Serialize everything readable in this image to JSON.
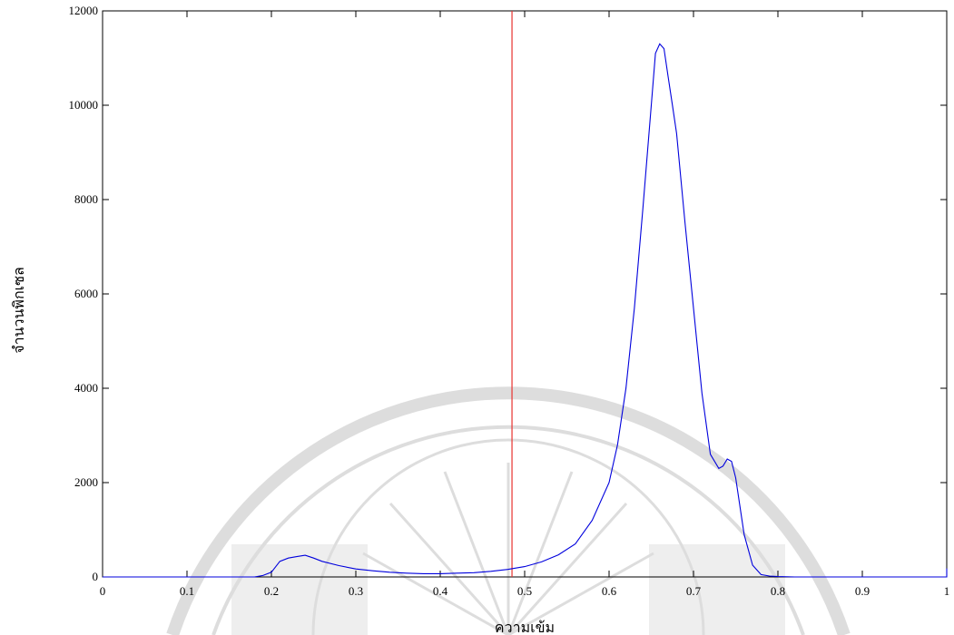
{
  "chart_data": {
    "type": "line",
    "title": "",
    "xlabel": "ความเข้ม",
    "ylabel": "จำนวนพิกเซล",
    "xlim": [
      0,
      1
    ],
    "ylim": [
      0,
      12000
    ],
    "xticks": [
      0,
      0.1,
      0.2,
      0.3,
      0.4,
      0.5,
      0.6,
      0.7,
      0.8,
      0.9,
      1
    ],
    "xtick_labels": [
      "0",
      "0.1",
      "0.2",
      "0.3",
      "0.4",
      "0.5",
      "0.6",
      "0.7",
      "0.8",
      "0.9",
      "1"
    ],
    "yticks": [
      0,
      2000,
      4000,
      6000,
      8000,
      10000,
      12000
    ],
    "ytick_labels": [
      "0",
      "2000",
      "4000",
      "6000",
      "8000",
      "10000",
      "12000"
    ],
    "grid": false,
    "threshold_line": {
      "x": 0.485,
      "color": "#e8322f"
    },
    "series": [
      {
        "color": "#0000dd",
        "points": [
          [
            0.0,
            0
          ],
          [
            0.18,
            0
          ],
          [
            0.19,
            30
          ],
          [
            0.2,
            100
          ],
          [
            0.21,
            330
          ],
          [
            0.22,
            400
          ],
          [
            0.23,
            430
          ],
          [
            0.24,
            460
          ],
          [
            0.25,
            400
          ],
          [
            0.26,
            330
          ],
          [
            0.28,
            240
          ],
          [
            0.3,
            170
          ],
          [
            0.32,
            130
          ],
          [
            0.34,
            100
          ],
          [
            0.36,
            80
          ],
          [
            0.38,
            70
          ],
          [
            0.4,
            70
          ],
          [
            0.42,
            80
          ],
          [
            0.44,
            90
          ],
          [
            0.46,
            120
          ],
          [
            0.48,
            160
          ],
          [
            0.5,
            220
          ],
          [
            0.52,
            320
          ],
          [
            0.54,
            470
          ],
          [
            0.56,
            700
          ],
          [
            0.58,
            1200
          ],
          [
            0.6,
            2000
          ],
          [
            0.61,
            2800
          ],
          [
            0.62,
            4000
          ],
          [
            0.63,
            5700
          ],
          [
            0.64,
            7800
          ],
          [
            0.65,
            10000
          ],
          [
            0.655,
            11100
          ],
          [
            0.66,
            11300
          ],
          [
            0.665,
            11200
          ],
          [
            0.67,
            10600
          ],
          [
            0.675,
            10000
          ],
          [
            0.68,
            9400
          ],
          [
            0.69,
            7500
          ],
          [
            0.7,
            5700
          ],
          [
            0.71,
            3900
          ],
          [
            0.72,
            2600
          ],
          [
            0.73,
            2300
          ],
          [
            0.735,
            2350
          ],
          [
            0.74,
            2500
          ],
          [
            0.745,
            2450
          ],
          [
            0.75,
            2100
          ],
          [
            0.76,
            900
          ],
          [
            0.77,
            250
          ],
          [
            0.78,
            50
          ],
          [
            0.79,
            20
          ],
          [
            0.8,
            10
          ],
          [
            0.82,
            0
          ],
          [
            1.0,
            0
          ],
          [
            1.0,
            180
          ]
        ]
      }
    ]
  },
  "watermark": {
    "description_icon": "university-seal-watermark-icon"
  }
}
